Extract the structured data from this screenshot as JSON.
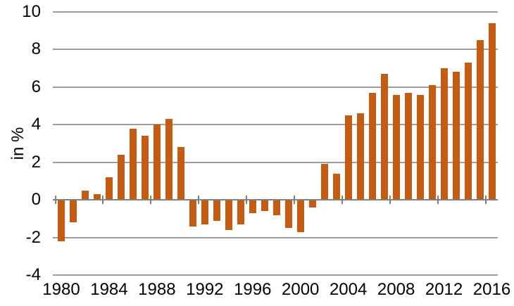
{
  "chart_data": {
    "type": "bar",
    "title": "",
    "xlabel": "",
    "ylabel": "in %",
    "x": [
      1980,
      1981,
      1982,
      1983,
      1984,
      1985,
      1986,
      1987,
      1988,
      1989,
      1990,
      1991,
      1992,
      1993,
      1994,
      1995,
      1996,
      1997,
      1998,
      1999,
      2000,
      2001,
      2002,
      2003,
      2004,
      2005,
      2006,
      2007,
      2008,
      2009,
      2010,
      2011,
      2012,
      2013,
      2014,
      2015,
      2016
    ],
    "values": [
      -2.2,
      -1.2,
      0.5,
      0.3,
      1.2,
      2.4,
      3.8,
      3.4,
      4.0,
      4.3,
      2.8,
      -1.4,
      -1.3,
      -1.1,
      -1.6,
      -1.3,
      -0.7,
      -0.6,
      -0.8,
      -1.5,
      -1.7,
      -0.4,
      1.9,
      1.4,
      4.5,
      4.6,
      5.7,
      6.7,
      5.6,
      5.7,
      5.6,
      6.1,
      7.0,
      6.8,
      7.3,
      8.5,
      9.4
    ],
    "ylim": [
      -4,
      10
    ],
    "ytick_step": 2,
    "ytick_labels": [
      "10",
      "8",
      "6",
      "4",
      "2",
      "0",
      "-2",
      "-4"
    ],
    "xtick_interval": 4,
    "xtick_labels": [
      "1980",
      "1984",
      "1988",
      "1992",
      "1996",
      "2000",
      "2004",
      "2008",
      "2012",
      "2016"
    ],
    "grid": "horizontal",
    "legend": "none",
    "colors": {
      "bar": "#C55A11",
      "gridline": "#9E9E9E",
      "axis": "#808080",
      "text": "#000000",
      "background": "#FFFFFF"
    }
  }
}
